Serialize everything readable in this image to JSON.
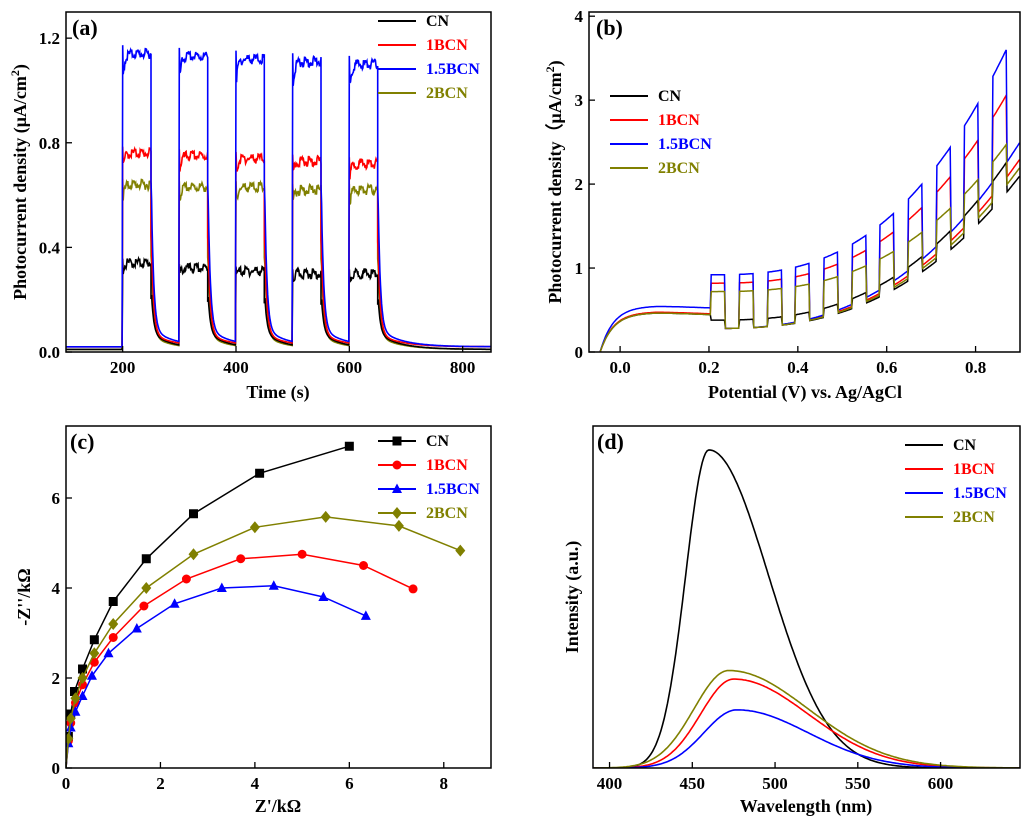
{
  "colors": {
    "CN": "#000000",
    "1BCN": "#ff0000",
    "1.5BCN": "#0000ff",
    "2BCN": "#808000"
  },
  "chart_data": [
    {
      "panel": "(a)",
      "type": "line",
      "xlabel": "Time (s)",
      "ylabel_main": "Photocurrent density (μA/cm",
      "ylabel_sup": "2",
      "ylabel_tail": ")",
      "xlim": [
        100,
        850
      ],
      "ylim": [
        0,
        1.3
      ],
      "xticks": [
        200,
        400,
        600,
        800
      ],
      "yticks": [
        0.0,
        0.4,
        0.8,
        1.2
      ],
      "ytick_labels": [
        "0.0",
        "0.4",
        "0.8",
        "1.2"
      ],
      "legend": "top-right",
      "on_intervals": [
        [
          200,
          250
        ],
        [
          300,
          350
        ],
        [
          400,
          450
        ],
        [
          500,
          550
        ],
        [
          600,
          650
        ]
      ],
      "series": [
        {
          "name": "CN",
          "on_values": [
            0.35,
            0.33,
            0.32,
            0.31,
            0.31
          ],
          "dark": 0.01
        },
        {
          "name": "1BCN",
          "on_values": [
            0.77,
            0.76,
            0.75,
            0.74,
            0.73
          ],
          "dark": 0.02
        },
        {
          "name": "1.5BCN",
          "on_values": [
            1.15,
            1.14,
            1.13,
            1.12,
            1.11
          ],
          "dark": 0.02
        },
        {
          "name": "2BCN",
          "on_values": [
            0.65,
            0.64,
            0.64,
            0.63,
            0.63
          ],
          "dark": 0.01
        }
      ]
    },
    {
      "panel": "(b)",
      "type": "line",
      "xlabel": "Potential (V) vs. Ag/AgCl",
      "ylabel": "Photocurrent density（μA/cm",
      "ylabel_sup": "2",
      "ylabel_tail": ")",
      "xlim": [
        -0.07,
        0.9
      ],
      "ylim": [
        0,
        4.05
      ],
      "xticks": [
        0.0,
        0.2,
        0.4,
        0.6,
        0.8
      ],
      "xtick_labels": [
        "0.0",
        "0.2",
        "0.4",
        "0.6",
        "0.8"
      ],
      "yticks": [
        0,
        1,
        2,
        3,
        4
      ],
      "ytick_labels": [
        "0",
        "1",
        "2",
        "3",
        "4"
      ],
      "legend": "left",
      "series": [
        {
          "name": "CN",
          "dark_end": 2.1,
          "light_end": 2.5,
          "peak": 0.47
        },
        {
          "name": "1BCN",
          "dark_end": 2.3,
          "light_end": 3.35,
          "peak": 0.48
        },
        {
          "name": "1.5BCN",
          "dark_end": 2.5,
          "light_end": 3.95,
          "peak": 0.55
        },
        {
          "name": "2BCN",
          "dark_end": 2.2,
          "light_end": 2.7,
          "peak": 0.47
        }
      ]
    },
    {
      "panel": "(c)",
      "type": "scatter",
      "xlabel": "Z'/kΩ",
      "ylabel": "-Z''/kΩ",
      "xlim": [
        0,
        9
      ],
      "ylim": [
        0,
        7.6
      ],
      "xticks": [
        0,
        2,
        4,
        6,
        8
      ],
      "yticks": [
        0,
        2,
        4,
        6
      ],
      "legend": "top-right",
      "series": [
        {
          "name": "CN",
          "marker": "square",
          "x": [
            0.05,
            0.1,
            0.18,
            0.35,
            0.6,
            1.0,
            1.7,
            2.7,
            4.1,
            6.0
          ],
          "y": [
            0.7,
            1.2,
            1.7,
            2.2,
            2.85,
            3.7,
            4.65,
            5.65,
            6.55,
            7.15
          ]
        },
        {
          "name": "1BCN",
          "marker": "circle",
          "x": [
            0.05,
            0.1,
            0.2,
            0.35,
            0.6,
            1.0,
            1.65,
            2.55,
            3.7,
            5.0,
            6.3,
            7.35
          ],
          "y": [
            0.6,
            1.0,
            1.45,
            1.85,
            2.35,
            2.9,
            3.6,
            4.2,
            4.65,
            4.75,
            4.5,
            3.98
          ]
        },
        {
          "name": "1.5BCN",
          "marker": "triangle",
          "x": [
            0.05,
            0.1,
            0.2,
            0.35,
            0.55,
            0.9,
            1.5,
            2.3,
            3.3,
            4.4,
            5.45,
            6.35
          ],
          "y": [
            0.55,
            0.9,
            1.25,
            1.6,
            2.05,
            2.55,
            3.1,
            3.65,
            4.0,
            4.05,
            3.8,
            3.38
          ]
        },
        {
          "name": "2BCN",
          "marker": "diamond",
          "x": [
            0.05,
            0.1,
            0.2,
            0.35,
            0.6,
            1.0,
            1.7,
            2.7,
            4.0,
            5.5,
            7.05,
            8.35
          ],
          "y": [
            0.65,
            1.1,
            1.55,
            2.0,
            2.55,
            3.2,
            4.0,
            4.75,
            5.35,
            5.58,
            5.38,
            4.83
          ]
        }
      ]
    },
    {
      "panel": "(d)",
      "type": "line",
      "xlabel": "Wavelength (nm)",
      "ylabel": "Intensity (a.u.)",
      "xlim": [
        390,
        648
      ],
      "ylim": [
        0,
        1.0
      ],
      "xticks": [
        400,
        450,
        500,
        550,
        600
      ],
      "legend": "top-right",
      "series": [
        {
          "name": "CN",
          "peak_x": 460,
          "peak_y": 0.93,
          "sigma_left": 14,
          "sigma_right": 36
        },
        {
          "name": "1BCN",
          "peak_x": 475,
          "peak_y": 0.26,
          "sigma_left": 20,
          "sigma_right": 45
        },
        {
          "name": "1.5BCN",
          "peak_x": 477,
          "peak_y": 0.17,
          "sigma_left": 20,
          "sigma_right": 43
        },
        {
          "name": "2BCN",
          "peak_x": 472,
          "peak_y": 0.285,
          "sigma_left": 21,
          "sigma_right": 48
        }
      ]
    }
  ]
}
